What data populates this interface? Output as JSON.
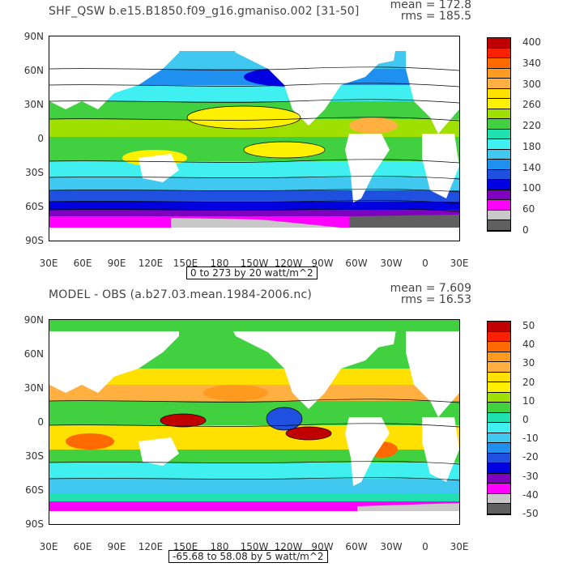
{
  "panels": [
    {
      "id": "top",
      "title": "SHF_QSW  b.e15.B1850.f09_g16.gmaniso.002 [31-50]",
      "mean": "mean = 172.8",
      "rms": "rms = 185.5",
      "range_label": "0 to 273 by 20 watt/m^2",
      "y_ticks": [
        "90N",
        "60N",
        "30N",
        "0",
        "30S",
        "60S",
        "90S"
      ],
      "x_ticks": [
        "30E",
        "60E",
        "90E",
        "120E",
        "150E",
        "180",
        "150W",
        "120W",
        "90W",
        "60W",
        "30W",
        "0",
        "30E"
      ],
      "colorbar_labels": [
        "400",
        "340",
        "300",
        "260",
        "220",
        "180",
        "140",
        "100",
        "60",
        "0"
      ],
      "colorbar_colors": [
        "#c00000",
        "#ff2000",
        "#ff6a00",
        "#ff9a20",
        "#ffb040",
        "#ffe000",
        "#fff000",
        "#a0e000",
        "#40d040",
        "#20e0b0",
        "#40f0f0",
        "#40c8f0",
        "#2090f0",
        "#2050e0",
        "#0000e0",
        "#8000c0",
        "#ff00ff",
        "#c8c8c8",
        "#606060"
      ]
    },
    {
      "id": "bottom",
      "title": "MODEL - OBS (a.b27.03.mean.1984-2006.nc)",
      "mean": "mean = 7.609",
      "rms": "rms = 16.53",
      "range_label": "-65.68 to 58.08 by 5 watt/m^2",
      "y_ticks": [
        "90N",
        "60N",
        "30N",
        "0",
        "30S",
        "60S",
        "90S"
      ],
      "x_ticks": [
        "30E",
        "60E",
        "90E",
        "120E",
        "150E",
        "180",
        "150W",
        "120W",
        "90W",
        "60W",
        "30W",
        "0",
        "30E"
      ],
      "colorbar_labels": [
        "50",
        "40",
        "30",
        "20",
        "10",
        "0",
        "-10",
        "-20",
        "-30",
        "-40",
        "-50"
      ],
      "colorbar_colors": [
        "#c00000",
        "#ff2000",
        "#ff6a00",
        "#ff9a20",
        "#ffb040",
        "#ffe000",
        "#fff000",
        "#a0e000",
        "#40d040",
        "#20e0b0",
        "#40f0f0",
        "#40c8f0",
        "#2090f0",
        "#2050e0",
        "#0000e0",
        "#8000c0",
        "#ff00ff",
        "#c8c8c8",
        "#606060"
      ]
    }
  ]
}
